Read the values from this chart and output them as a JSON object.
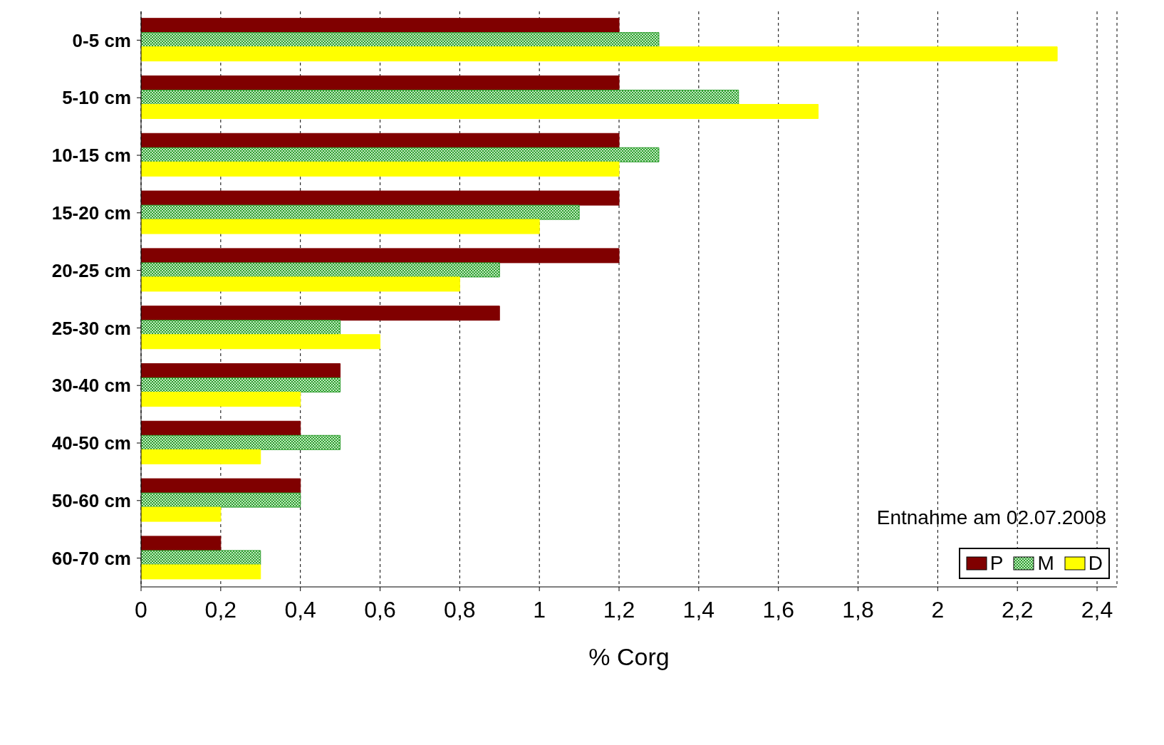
{
  "chart_data": {
    "type": "bar",
    "orientation": "horizontal",
    "xlabel": "% Corg",
    "categories": [
      "0-5 cm",
      "5-10 cm",
      "10-15 cm",
      "15-20 cm",
      "20-25 cm",
      "25-30 cm",
      "30-40 cm",
      "40-50 cm",
      "50-60 cm",
      "60-70 cm"
    ],
    "series": [
      {
        "name": "P",
        "color": "#800000",
        "values": [
          1.2,
          1.2,
          1.2,
          1.2,
          1.2,
          0.9,
          0.5,
          0.4,
          0.4,
          0.2
        ]
      },
      {
        "name": "M",
        "color": "#2e9e2e",
        "values": [
          1.3,
          1.5,
          1.3,
          1.1,
          0.9,
          0.5,
          0.5,
          0.5,
          0.4,
          0.3
        ]
      },
      {
        "name": "D",
        "color": "#ffff00",
        "values": [
          2.3,
          1.7,
          1.2,
          1.0,
          0.8,
          0.6,
          0.4,
          0.3,
          0.2,
          0.3
        ]
      }
    ],
    "xlim": [
      0,
      2.45
    ],
    "xticks": [
      0,
      {
        "value": 0.2,
        "label": "0,2"
      },
      {
        "value": 0.4,
        "label": "0,4"
      },
      {
        "value": 0.6,
        "label": "0,6"
      },
      {
        "value": 0.8,
        "label": "0,8"
      },
      1,
      {
        "value": 1.2,
        "label": "1,2"
      },
      {
        "value": 1.4,
        "label": "1,4"
      },
      {
        "value": 1.6,
        "label": "1,6"
      },
      {
        "value": 1.8,
        "label": "1,8"
      },
      2,
      {
        "value": 2.2,
        "label": "2,2"
      },
      {
        "value": 2.4,
        "label": "2,4"
      }
    ],
    "grid": "x",
    "legend": "bottom right",
    "annotations": [
      "Entnahme am 02.07.2008"
    ]
  }
}
